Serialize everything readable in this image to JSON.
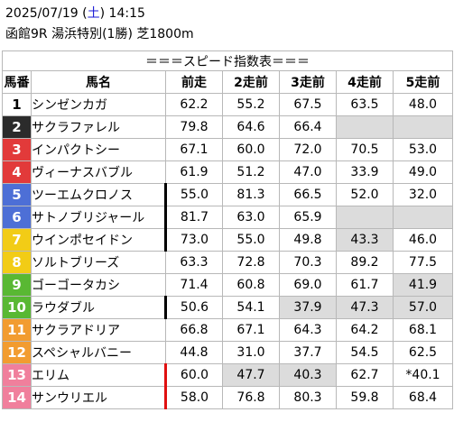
{
  "header": {
    "date": "2025/07/19",
    "dow_open": "(",
    "dow": "土",
    "dow_close": ")",
    "time": "14:15",
    "race": "函館9R 湯浜特別(1勝) 芝1800m"
  },
  "table": {
    "title": "＝＝＝スピード指数表＝＝＝",
    "columns": [
      "馬番",
      "馬名",
      "前走",
      "2走前",
      "3走前",
      "4走前",
      "5走前"
    ],
    "rows": [
      {
        "num": "1",
        "name": "シンゼンカガ",
        "vals": [
          "62.2",
          "55.2",
          "67.5",
          "63.5",
          "48.0"
        ]
      },
      {
        "num": "2",
        "name": "サクラファレル",
        "vals": [
          "79.8",
          "64.6",
          "66.4",
          "",
          ""
        ]
      },
      {
        "num": "3",
        "name": "インパクトシー",
        "vals": [
          "67.1",
          "60.0",
          "72.0",
          "70.5",
          "53.0"
        ]
      },
      {
        "num": "4",
        "name": "ヴィーナスバブル",
        "vals": [
          "61.9",
          "51.2",
          "47.0",
          "33.9",
          "49.0"
        ]
      },
      {
        "num": "5",
        "name": "ツーエムクロノス",
        "vals": [
          "55.0",
          "81.3",
          "66.5",
          "52.0",
          "32.0"
        ]
      },
      {
        "num": "6",
        "name": "サトノブリジャール",
        "vals": [
          "81.7",
          "63.0",
          "65.9",
          "",
          ""
        ]
      },
      {
        "num": "7",
        "name": "ウインポセイドン",
        "vals": [
          "73.0",
          "55.0",
          "49.8",
          "43.3",
          "46.0"
        ]
      },
      {
        "num": "8",
        "name": "ソルトブリーズ",
        "vals": [
          "63.3",
          "72.8",
          "70.3",
          "89.2",
          "77.5"
        ]
      },
      {
        "num": "9",
        "name": "ゴーゴータカシ",
        "vals": [
          "71.4",
          "60.8",
          "69.0",
          "61.7",
          "41.9"
        ]
      },
      {
        "num": "10",
        "name": "ラウダブル",
        "vals": [
          "50.6",
          "54.1",
          "37.9",
          "47.3",
          "57.0"
        ]
      },
      {
        "num": "11",
        "name": "サクラアドリア",
        "vals": [
          "66.8",
          "67.1",
          "64.3",
          "64.2",
          "68.1"
        ]
      },
      {
        "num": "12",
        "name": "スペシャルバニー",
        "vals": [
          "44.8",
          "31.0",
          "37.7",
          "54.5",
          "62.5"
        ]
      },
      {
        "num": "13",
        "name": "エリム",
        "vals": [
          "60.0",
          "47.7",
          "40.3",
          "62.7",
          "*40.1"
        ]
      },
      {
        "num": "14",
        "name": "サンウリエル",
        "vals": [
          "58.0",
          "76.8",
          "80.3",
          "59.8",
          "68.4"
        ]
      }
    ]
  },
  "colors": {
    "frame_1": "#ffffff",
    "frame_2": "#2b2b2b",
    "frame_3": "#e23a3a",
    "frame_4": "#4d6fd6",
    "frame_5": "#f2cc16",
    "frame_6": "#59b833",
    "frame_7": "#f29c30",
    "frame_8": "#f07f9c",
    "highlight": "#dcdcdc",
    "mark_black": "#000000",
    "mark_red": "#e01010",
    "dow": "#1a1ad6"
  }
}
